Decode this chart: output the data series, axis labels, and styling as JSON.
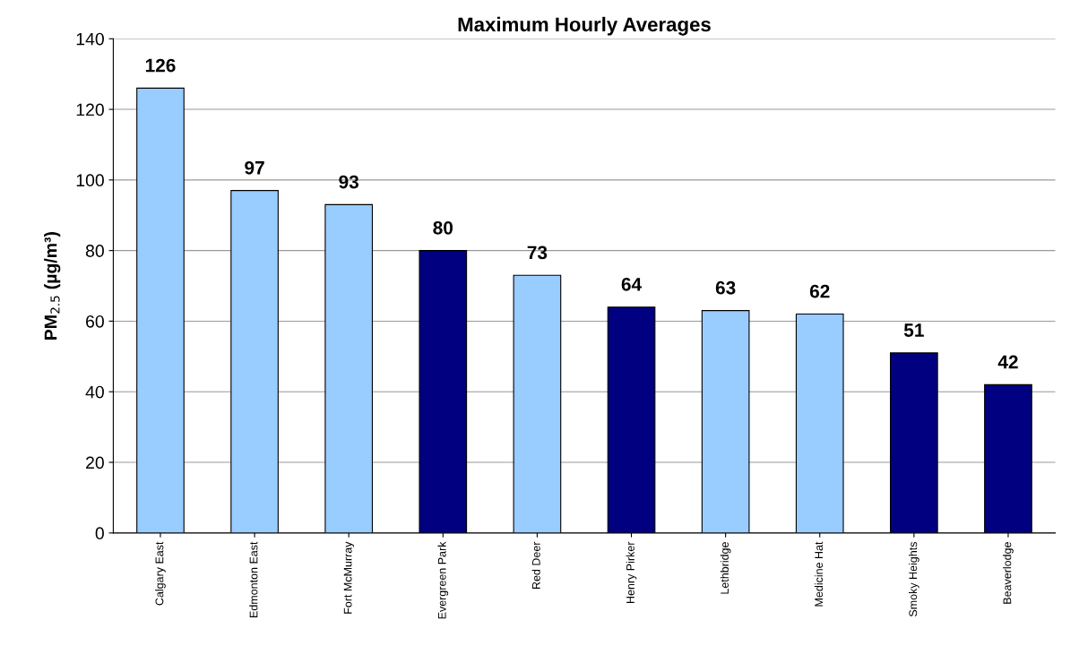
{
  "chart_data": {
    "type": "bar",
    "title": "Maximum Hourly Averages",
    "ylabel": "PM$_{2.5}$ (µg/m³)",
    "categories": [
      "Calgary East",
      "Edmonton East",
      "Fort McMurray",
      "Evergreen Park",
      "Red Deer",
      "Henry Pirker",
      "Lethbridge",
      "Medicine Hat",
      "Smoky Heights",
      "Beaverlodge"
    ],
    "values": [
      126,
      97,
      93,
      80,
      73,
      64,
      63,
      62,
      51,
      42
    ],
    "colors": [
      "#99ccff",
      "#99ccff",
      "#99ccff",
      "#000080",
      "#99ccff",
      "#000080",
      "#99ccff",
      "#99ccff",
      "#000080",
      "#000080"
    ],
    "ylim": [
      0,
      140
    ],
    "yticks": [
      0,
      20,
      40,
      60,
      80,
      100,
      120,
      140
    ],
    "grid": "y",
    "data_labels": true
  }
}
